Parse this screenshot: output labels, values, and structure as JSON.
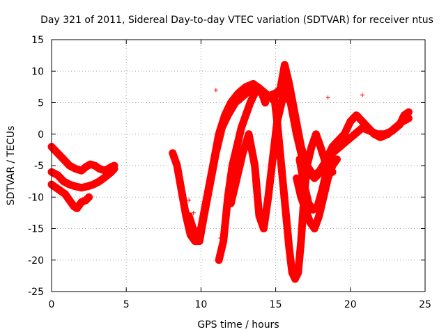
{
  "chart_data": {
    "type": "scatter",
    "title": "Day 321 of 2011, Sidereal Day-to-day VTEC variation (SDTVAR) for receiver ntus",
    "xlabel": "GPS time / hours",
    "ylabel": "SDTVAR / TECUs",
    "xlim": [
      0,
      25
    ],
    "ylim": [
      -25,
      15
    ],
    "xticks": [
      0,
      5,
      10,
      15,
      20,
      25
    ],
    "yticks": [
      -25,
      -20,
      -15,
      -10,
      -5,
      0,
      5,
      10,
      15
    ],
    "grid": true,
    "legend": "none",
    "marker": "+",
    "color": "#ff0000",
    "series": [
      {
        "values": [
          [
            0,
            -2
          ],
          [
            0.4,
            -3
          ],
          [
            0.8,
            -4
          ],
          [
            1.2,
            -5
          ],
          [
            1.6,
            -5.5
          ],
          [
            2.0,
            -5.8
          ],
          [
            2.3,
            -5.2
          ],
          [
            2.6,
            -4.8
          ],
          [
            2.9,
            -5
          ],
          [
            3.2,
            -5.5
          ],
          [
            3.6,
            -5.8
          ],
          [
            4.0,
            -5.2
          ],
          [
            4.2,
            -5
          ]
        ]
      },
      {
        "values": [
          [
            0,
            -6
          ],
          [
            0.4,
            -6.5
          ],
          [
            0.8,
            -7.5
          ],
          [
            1.2,
            -8
          ],
          [
            1.6,
            -8.3
          ],
          [
            2.0,
            -8.5
          ],
          [
            2.4,
            -8.3
          ],
          [
            2.8,
            -8.0
          ],
          [
            3.2,
            -7.5
          ],
          [
            3.6,
            -6.8
          ],
          [
            4.0,
            -6.0
          ],
          [
            4.2,
            -5.5
          ]
        ]
      },
      {
        "values": [
          [
            0,
            -8
          ],
          [
            0.3,
            -8.5
          ],
          [
            0.6,
            -9
          ],
          [
            0.9,
            -9.5
          ],
          [
            1.2,
            -10.5
          ],
          [
            1.5,
            -11.5
          ],
          [
            1.7,
            -11.8
          ],
          [
            2.0,
            -10.8
          ],
          [
            2.3,
            -10.5
          ],
          [
            2.5,
            -10
          ]
        ]
      },
      {
        "values": [
          [
            8.1,
            -3
          ],
          [
            8.4,
            -5
          ],
          [
            8.7,
            -9
          ],
          [
            9.0,
            -13
          ],
          [
            9.3,
            -16
          ],
          [
            9.6,
            -17
          ],
          [
            9.9,
            -17
          ],
          [
            10.2,
            -13
          ],
          [
            10.6,
            -8
          ],
          [
            11.0,
            -3
          ],
          [
            11.4,
            1
          ],
          [
            11.8,
            3
          ],
          [
            12.3,
            5
          ],
          [
            12.8,
            6
          ],
          [
            13.3,
            7
          ],
          [
            13.8,
            7.5
          ],
          [
            14.3,
            6.5
          ],
          [
            14.8,
            5.5
          ],
          [
            15.3,
            7
          ],
          [
            15.6,
            11
          ],
          [
            15.9,
            8
          ],
          [
            16.3,
            3
          ],
          [
            16.7,
            -2
          ],
          [
            17.1,
            -5
          ],
          [
            17.5,
            -6.5
          ],
          [
            17.9,
            -6
          ],
          [
            18.3,
            -4.5
          ],
          [
            18.8,
            -3
          ],
          [
            19.3,
            -2
          ],
          [
            19.8,
            -1
          ],
          [
            20.3,
            0
          ],
          [
            20.8,
            1
          ],
          [
            21.3,
            0.5
          ],
          [
            21.8,
            0
          ],
          [
            22.3,
            0
          ],
          [
            22.8,
            0.5
          ],
          [
            23.3,
            1.5
          ],
          [
            23.6,
            3
          ],
          [
            23.9,
            3.5
          ]
        ]
      },
      {
        "values": [
          [
            9.2,
            -13
          ],
          [
            9.6,
            -16
          ],
          [
            10.0,
            -15
          ],
          [
            10.4,
            -10
          ],
          [
            10.8,
            -5
          ],
          [
            11.2,
            0
          ],
          [
            11.6,
            3
          ],
          [
            12.0,
            5
          ],
          [
            12.5,
            6.5
          ],
          [
            13.0,
            7.5
          ],
          [
            13.5,
            8
          ],
          [
            14.0,
            7
          ],
          [
            14.5,
            6
          ],
          [
            15.0,
            6.5
          ],
          [
            15.5,
            7.5
          ],
          [
            16.0,
            5
          ],
          [
            16.4,
            0
          ],
          [
            16.8,
            -4
          ],
          [
            17.2,
            -6
          ],
          [
            17.6,
            -7
          ],
          [
            18.0,
            -6
          ],
          [
            18.4,
            -4
          ],
          [
            18.8,
            -2
          ],
          [
            19.2,
            -1
          ],
          [
            19.6,
            0
          ],
          [
            20.0,
            2
          ],
          [
            20.4,
            3
          ],
          [
            20.8,
            2
          ],
          [
            21.2,
            1
          ],
          [
            21.6,
            0
          ],
          [
            22.0,
            -0.5
          ],
          [
            22.5,
            0
          ],
          [
            23.0,
            1
          ],
          [
            23.5,
            2
          ],
          [
            23.9,
            2.5
          ]
        ]
      },
      {
        "values": [
          [
            11.2,
            -20
          ],
          [
            11.5,
            -17
          ],
          [
            11.8,
            -10
          ],
          [
            12.1,
            -5
          ],
          [
            12.4,
            -2
          ],
          [
            12.7,
            1
          ],
          [
            13.0,
            3
          ],
          [
            13.3,
            5
          ],
          [
            13.6,
            6.5
          ],
          [
            14.0,
            7
          ],
          [
            14.3,
            5
          ]
        ]
      },
      {
        "values": [
          [
            12.0,
            -11
          ],
          [
            12.4,
            -7
          ],
          [
            12.8,
            -3
          ],
          [
            13.2,
            0
          ],
          [
            13.6,
            -5
          ],
          [
            13.9,
            -13
          ],
          [
            14.2,
            -15
          ],
          [
            14.5,
            -10
          ],
          [
            14.8,
            -4
          ],
          [
            15.1,
            2
          ],
          [
            15.4,
            5
          ],
          [
            15.6,
            7
          ]
        ]
      },
      {
        "values": [
          [
            14.9,
            6
          ],
          [
            15.1,
            2
          ],
          [
            15.3,
            -3
          ],
          [
            15.5,
            -8
          ],
          [
            15.7,
            -13
          ],
          [
            15.9,
            -18
          ],
          [
            16.1,
            -22
          ],
          [
            16.3,
            -23
          ],
          [
            16.5,
            -22
          ],
          [
            16.7,
            -17
          ],
          [
            16.9,
            -10
          ],
          [
            17.1,
            -5
          ],
          [
            17.4,
            -2
          ],
          [
            17.7,
            0
          ],
          [
            18.0,
            -2
          ],
          [
            18.4,
            -5
          ],
          [
            18.8,
            -6
          ]
        ]
      },
      {
        "values": [
          [
            16.4,
            -7
          ],
          [
            16.7,
            -10
          ],
          [
            17.0,
            -12
          ],
          [
            17.3,
            -14
          ],
          [
            17.6,
            -15
          ],
          [
            17.9,
            -13
          ],
          [
            18.2,
            -10
          ],
          [
            18.5,
            -7
          ],
          [
            18.8,
            -5
          ],
          [
            19.1,
            -4
          ]
        ]
      },
      {
        "values": [
          [
            16.6,
            -4
          ],
          [
            16.9,
            -8
          ],
          [
            17.2,
            -11
          ],
          [
            17.5,
            -12
          ],
          [
            17.8,
            -11.5
          ],
          [
            18.1,
            -9
          ],
          [
            18.4,
            -6
          ],
          [
            18.7,
            -4.5
          ],
          [
            19.0,
            -4
          ]
        ]
      }
    ],
    "outliers": [
      [
        11.0,
        7
      ],
      [
        18.5,
        5.8
      ],
      [
        20.8,
        6.2
      ],
      [
        11.3,
        -16.5
      ],
      [
        9.5,
        -12.5
      ],
      [
        9.2,
        -10.5
      ],
      [
        13.6,
        -8.3
      ]
    ]
  }
}
